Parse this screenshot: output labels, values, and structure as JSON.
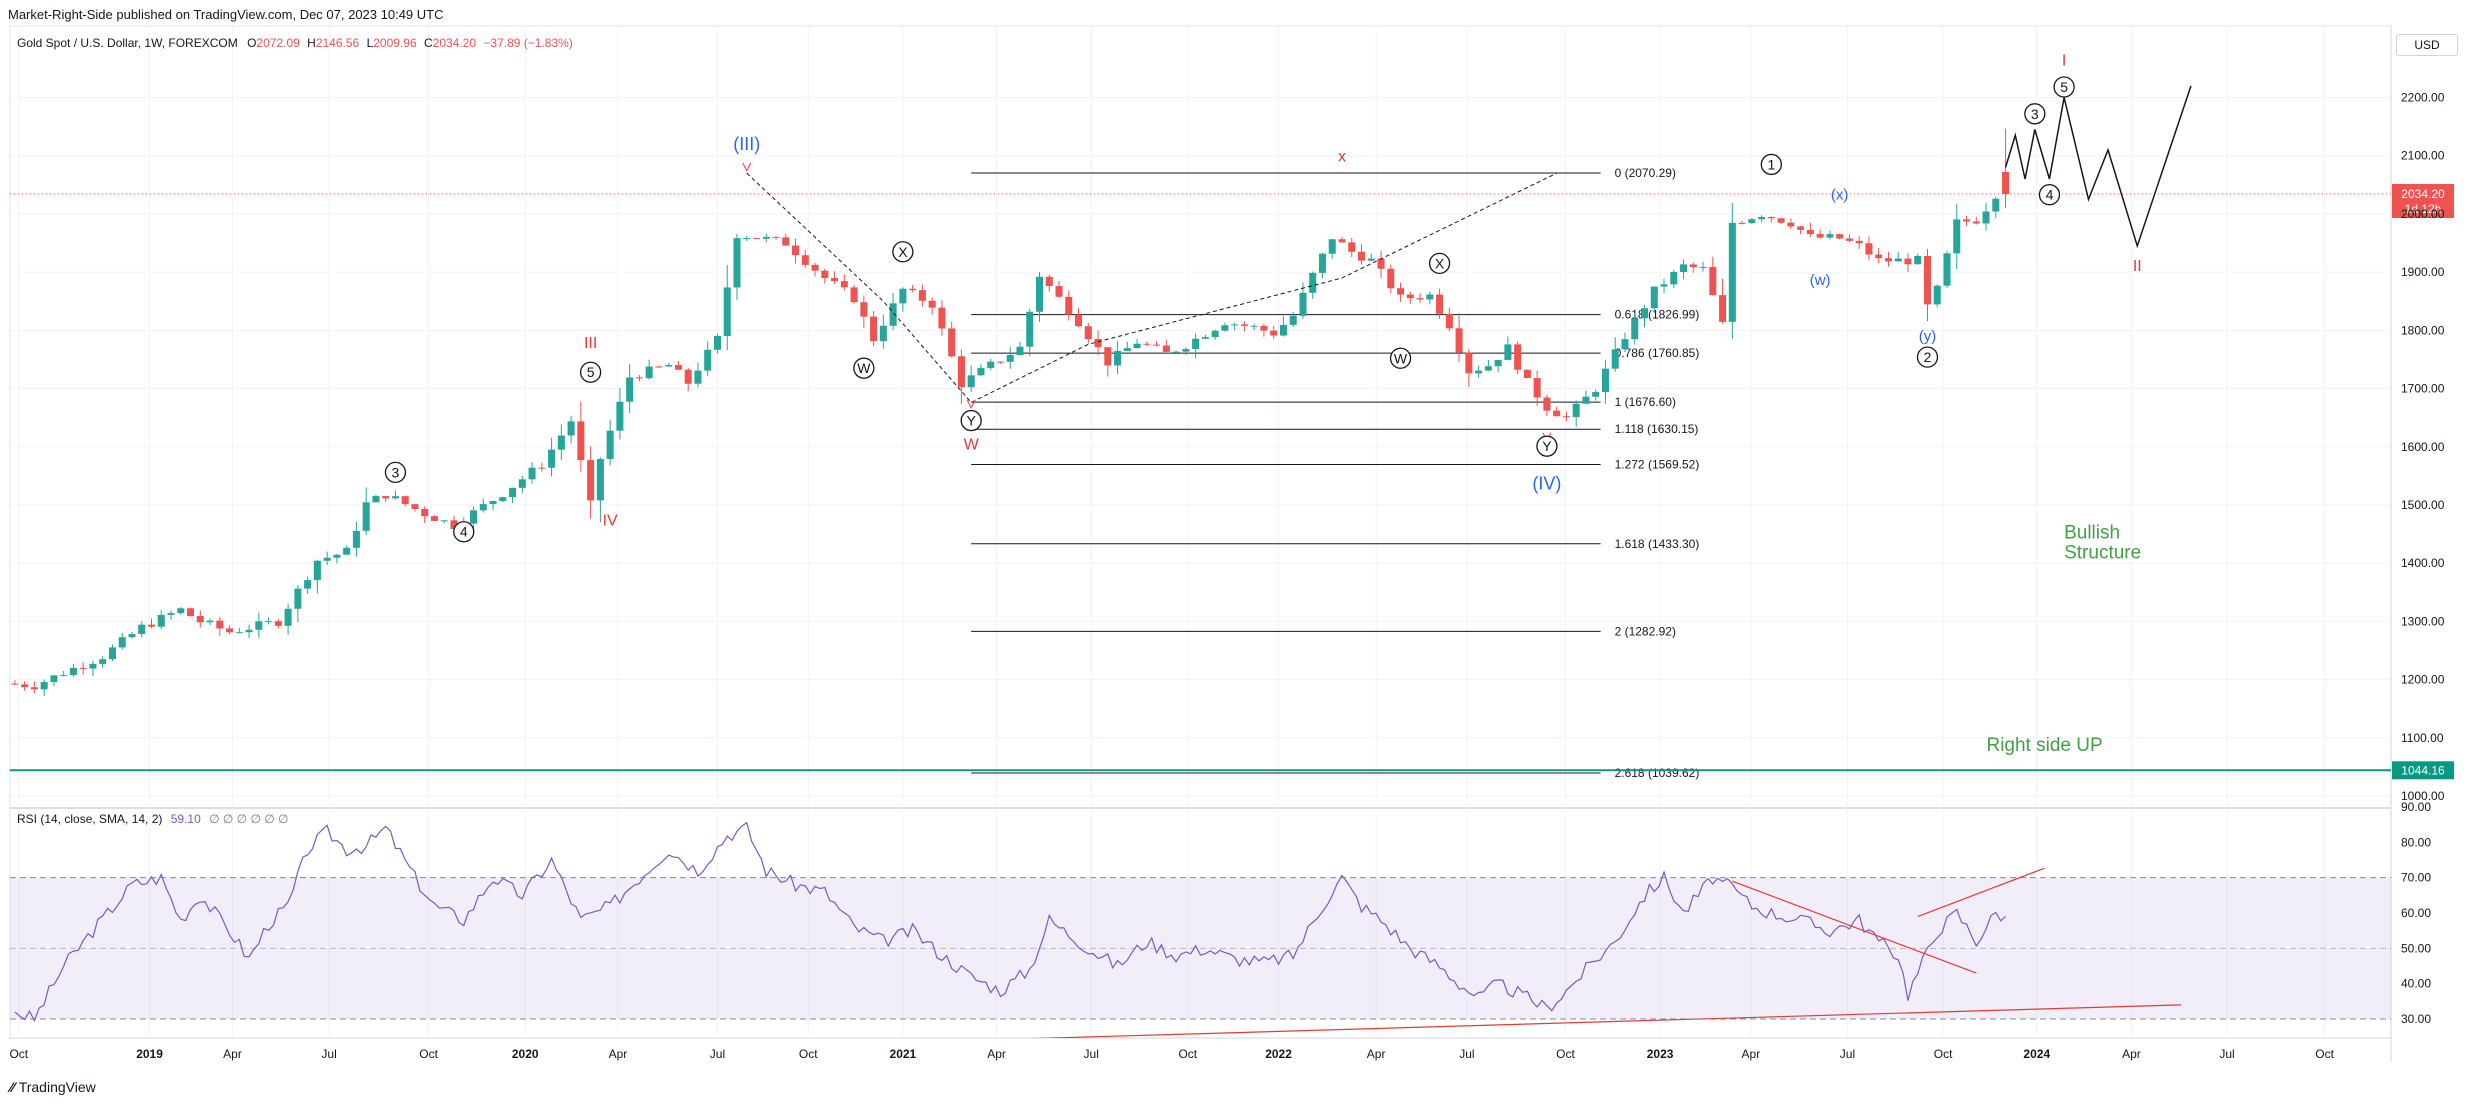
{
  "published": "Market-Right-Side published on TradingView.com, Dec 07, 2023 10:49 UTC",
  "symbol": {
    "name": "Gold Spot / U.S. Dollar, 1W, FOREXCOM",
    "open_label": "O",
    "open": "2072.09",
    "high_label": "H",
    "high": "2146.56",
    "low_label": "L",
    "low": "2009.96",
    "close_label": "C",
    "close": "2034.20",
    "change": "−37.89 (−1.83%)"
  },
  "currency": "USD",
  "price_tag": {
    "value": "2034.20",
    "countdown": "1d 12h"
  },
  "level_tag": "1044.16",
  "rsi_header": "RSI (14, close, SMA, 14, 2)",
  "rsi_value": "59.10",
  "rsi_extra": "∅ ∅ ∅ ∅ ∅ ∅",
  "brand": "TradingView",
  "colors": {
    "up": "#26a69a",
    "down": "#ef5350",
    "rsi": "#7e57c2",
    "wave_black": "#131722",
    "wave_blue": "#2962ff",
    "wave_red": "#e53935",
    "text_green": "#43a047"
  },
  "chart_data": {
    "type": "candlestick",
    "symbol": "XAUUSD",
    "timeframe": "1W",
    "ylim": [
      1000,
      2300
    ],
    "y_ticks": [
      1000,
      1100,
      1200,
      1300,
      1400,
      1500,
      1600,
      1700,
      1800,
      1900,
      2000,
      2100,
      2200
    ],
    "y_tick_labels": [
      "1000.00",
      "1100.00",
      "1200.00",
      "1300.00",
      "1400.00",
      "1500.00",
      "1600.00",
      "1700.00",
      "1800.00",
      "1900.00",
      "2000.00",
      "2100.00",
      "2200.00"
    ],
    "x_ticks": [
      {
        "label": "Oct",
        "t": 0.4,
        "bold": false
      },
      {
        "label": "2019",
        "t": 13.8,
        "bold": true
      },
      {
        "label": "Apr",
        "t": 22.3,
        "bold": false
      },
      {
        "label": "Jul",
        "t": 32.2,
        "bold": false
      },
      {
        "label": "Oct",
        "t": 42.4,
        "bold": false
      },
      {
        "label": "2020",
        "t": 52.3,
        "bold": true
      },
      {
        "label": "Apr",
        "t": 61.8,
        "bold": false
      },
      {
        "label": "Jul",
        "t": 72,
        "bold": false
      },
      {
        "label": "Oct",
        "t": 81.3,
        "bold": false
      },
      {
        "label": "2021",
        "t": 91,
        "bold": true
      },
      {
        "label": "Apr",
        "t": 100.6,
        "bold": false
      },
      {
        "label": "Jul",
        "t": 110.3,
        "bold": false
      },
      {
        "label": "Oct",
        "t": 120.2,
        "bold": false
      },
      {
        "label": "2022",
        "t": 129.5,
        "bold": true
      },
      {
        "label": "Apr",
        "t": 139.5,
        "bold": false
      },
      {
        "label": "Jul",
        "t": 148.8,
        "bold": false
      },
      {
        "label": "Oct",
        "t": 158.9,
        "bold": false
      },
      {
        "label": "2023",
        "t": 168.6,
        "bold": true
      },
      {
        "label": "Apr",
        "t": 177.9,
        "bold": false
      },
      {
        "label": "Jul",
        "t": 187.8,
        "bold": false
      },
      {
        "label": "Oct",
        "t": 197.6,
        "bold": false
      },
      {
        "label": "2024",
        "t": 207.2,
        "bold": true
      },
      {
        "label": "Apr",
        "t": 216.9,
        "bold": false
      },
      {
        "label": "Jul",
        "t": 226.7,
        "bold": false
      },
      {
        "label": "Oct",
        "t": 236.7,
        "bold": false
      }
    ],
    "t_range": [
      -0.5,
      243.5
    ],
    "anchors": [
      [
        0,
        1193
      ],
      [
        3,
        1190
      ],
      [
        6,
        1212
      ],
      [
        10,
        1240
      ],
      [
        14,
        1290
      ],
      [
        18,
        1320
      ],
      [
        20,
        1300
      ],
      [
        23,
        1282
      ],
      [
        28,
        1300
      ],
      [
        32,
        1405
      ],
      [
        35,
        1420
      ],
      [
        37,
        1502
      ],
      [
        39,
        1518
      ],
      [
        43,
        1485
      ],
      [
        46,
        1465
      ],
      [
        51,
        1520
      ],
      [
        55,
        1570
      ],
      [
        58,
        1645
      ],
      [
        60,
        1500
      ],
      [
        61,
        1580
      ],
      [
        64,
        1720
      ],
      [
        68,
        1740
      ],
      [
        70,
        1710
      ],
      [
        73,
        1785
      ],
      [
        75,
        1965
      ],
      [
        77,
        1960
      ],
      [
        80,
        1950
      ],
      [
        84,
        1890
      ],
      [
        87,
        1855
      ],
      [
        89,
        1785
      ],
      [
        92,
        1870
      ],
      [
        95,
        1845
      ],
      [
        98,
        1708
      ],
      [
        101,
        1740
      ],
      [
        104,
        1770
      ],
      [
        106,
        1895
      ],
      [
        108,
        1855
      ],
      [
        110,
        1815
      ],
      [
        113,
        1745
      ],
      [
        116,
        1780
      ],
      [
        119,
        1760
      ],
      [
        121,
        1775
      ],
      [
        125,
        1815
      ],
      [
        128,
        1805
      ],
      [
        130,
        1795
      ],
      [
        132,
        1825
      ],
      [
        134,
        1895
      ],
      [
        136,
        1960
      ],
      [
        138,
        1935
      ],
      [
        140,
        1920
      ],
      [
        143,
        1855
      ],
      [
        146,
        1860
      ],
      [
        148,
        1810
      ],
      [
        150,
        1730
      ],
      [
        152,
        1740
      ],
      [
        154,
        1770
      ],
      [
        156,
        1710
      ],
      [
        158,
        1668
      ],
      [
        160,
        1650
      ],
      [
        163,
        1700
      ],
      [
        166,
        1790
      ],
      [
        169,
        1868
      ],
      [
        172,
        1910
      ],
      [
        174,
        1905
      ],
      [
        176,
        1810
      ],
      [
        177,
        1985
      ],
      [
        180,
        2000
      ],
      [
        183,
        1985
      ],
      [
        185,
        1960
      ],
      [
        188,
        1958
      ],
      [
        190,
        1945
      ],
      [
        192,
        1920
      ],
      [
        194,
        1920
      ],
      [
        196,
        1920
      ],
      [
        197,
        1840
      ],
      [
        198,
        1870
      ],
      [
        200,
        1985
      ],
      [
        202,
        1990
      ],
      [
        203,
        2010
      ],
      [
        204,
        2034
      ]
    ],
    "final_candle": {
      "open": 2072.09,
      "high": 2146.56,
      "low": 2009.96,
      "close": 2034.2
    },
    "fib_levels": [
      {
        "label": "0 (2070.29)",
        "price": 2070.29
      },
      {
        "label": "0.618 (1826.99)",
        "price": 1826.99
      },
      {
        "label": "0.786 (1760.85)",
        "price": 1760.85
      },
      {
        "label": "1 (1676.60)",
        "price": 1676.6
      },
      {
        "label": "1.118 (1630.15)",
        "price": 1630.15
      },
      {
        "label": "1.272 (1569.52)",
        "price": 1569.52
      },
      {
        "label": "1.618 (1433.30)",
        "price": 1433.3
      },
      {
        "label": "2 (1282.92)",
        "price": 1282.92
      },
      {
        "label": "2.618 (1039.62)",
        "price": 1039.62
      }
    ],
    "fib_t_range": [
      98,
      162.5
    ],
    "horizontal_line": 1044.16,
    "current_price": 2034.2,
    "wave_labels": [
      {
        "text": "3",
        "circled": true,
        "color": "black",
        "t": 39,
        "p": 1556
      },
      {
        "text": "4",
        "circled": true,
        "color": "black",
        "t": 46,
        "p": 1454
      },
      {
        "text": "5",
        "circled": true,
        "color": "black",
        "t": 59,
        "p": 1728
      },
      {
        "text": "III",
        "circled": false,
        "color": "red",
        "t": 59,
        "p": 1780
      },
      {
        "text": "IV",
        "circled": false,
        "color": "red",
        "t": 61,
        "p": 1475
      },
      {
        "text": "(III)",
        "circled": false,
        "color": "blue",
        "t": 75,
        "p": 2120
      },
      {
        "text": "X",
        "circled": true,
        "color": "black",
        "t": 91,
        "p": 1935
      },
      {
        "text": "W",
        "circled": true,
        "color": "black",
        "t": 87,
        "p": 1735
      },
      {
        "text": "Y",
        "circled": true,
        "color": "black",
        "t": 98,
        "p": 1645
      },
      {
        "text": "W",
        "circled": false,
        "color": "red",
        "t": 98,
        "p": 1606
      },
      {
        "text": "x",
        "circled": false,
        "color": "red",
        "t": 136,
        "p": 2100
      },
      {
        "text": "X",
        "circled": true,
        "color": "black",
        "t": 146,
        "p": 1915
      },
      {
        "text": "W",
        "circled": true,
        "color": "black",
        "t": 142,
        "p": 1752
      },
      {
        "text": "Y",
        "circled": true,
        "color": "black",
        "t": 157,
        "p": 1601
      },
      {
        "text": "(IV)",
        "circled": false,
        "color": "blue",
        "t": 157,
        "p": 1537
      },
      {
        "text": "1",
        "circled": true,
        "color": "black",
        "t": 180,
        "p": 2085
      },
      {
        "text": "(x)",
        "circled": false,
        "color": "blue",
        "t": 187,
        "p": 2035
      },
      {
        "text": "(w)",
        "circled": false,
        "color": "blue",
        "t": 185,
        "p": 1888
      },
      {
        "text": "(y)",
        "circled": false,
        "color": "blue",
        "t": 196,
        "p": 1792
      },
      {
        "text": "2",
        "circled": true,
        "color": "black",
        "t": 196,
        "p": 1754
      },
      {
        "text": "3",
        "circled": true,
        "color": "black",
        "t": 207,
        "p": 2172
      },
      {
        "text": "4",
        "circled": true,
        "color": "black",
        "t": 208.5,
        "p": 2033
      },
      {
        "text": "5",
        "circled": true,
        "color": "black",
        "t": 210,
        "p": 2218
      },
      {
        "text": "I",
        "circled": false,
        "color": "red",
        "t": 210,
        "p": 2265
      },
      {
        "text": "II",
        "circled": false,
        "color": "red",
        "t": 217.5,
        "p": 1912
      }
    ],
    "wave_arrows": [
      [
        75,
        2074
      ],
      [
        98,
        1667
      ],
      [
        157,
        1610
      ]
    ],
    "projection_path": [
      [
        204,
        2080
      ],
      [
        205,
        2135
      ],
      [
        206,
        2060
      ],
      [
        207,
        2145
      ],
      [
        208.5,
        2060
      ],
      [
        210,
        2200
      ],
      [
        212.5,
        2025
      ],
      [
        214.5,
        2110
      ],
      [
        217.5,
        1945
      ],
      [
        223,
        2220
      ]
    ],
    "dashed_lines": [
      [
        [
          75,
          2070
        ],
        [
          89,
          1850
        ],
        [
          98,
          1676
        ],
        [
          110,
          1776
        ],
        [
          136,
          1890
        ],
        [
          158,
          2070
        ]
      ]
    ],
    "annotations": [
      {
        "text": "Bullish",
        "t": 210,
        "p": 1442,
        "color": "green"
      },
      {
        "text": "Structure",
        "t": 210,
        "p": 1408,
        "color": "green"
      },
      {
        "text": "Right side UP",
        "t": 208,
        "p": 1077,
        "color": "green"
      }
    ],
    "rsi": {
      "ylim": [
        25,
        90
      ],
      "y_ticks": [
        30,
        40,
        50,
        60,
        70,
        80,
        90
      ],
      "y_tick_labels": [
        "30.00",
        "40.00",
        "50.00",
        "60.00",
        "70.00",
        "80.00",
        "90.00"
      ],
      "overbought": 70,
      "middle": 50,
      "oversold": 30,
      "anchors": [
        [
          0,
          32
        ],
        [
          2,
          30
        ],
        [
          5,
          45
        ],
        [
          8,
          55
        ],
        [
          12,
          68
        ],
        [
          15,
          70
        ],
        [
          17,
          58
        ],
        [
          19,
          65
        ],
        [
          22,
          55
        ],
        [
          24,
          47
        ],
        [
          26,
          57
        ],
        [
          28,
          62
        ],
        [
          30,
          78
        ],
        [
          32,
          83
        ],
        [
          34,
          78
        ],
        [
          36,
          79
        ],
        [
          38,
          84
        ],
        [
          41,
          70
        ],
        [
          43,
          62
        ],
        [
          46,
          58
        ],
        [
          49,
          70
        ],
        [
          52,
          65
        ],
        [
          55,
          75
        ],
        [
          58,
          58
        ],
        [
          61,
          62
        ],
        [
          64,
          70
        ],
        [
          67,
          78
        ],
        [
          70,
          72
        ],
        [
          73,
          82
        ],
        [
          75,
          84
        ],
        [
          77,
          72
        ],
        [
          80,
          68
        ],
        [
          83,
          66
        ],
        [
          86,
          56
        ],
        [
          89,
          52
        ],
        [
          92,
          55
        ],
        [
          95,
          48
        ],
        [
          98,
          42
        ],
        [
          101,
          38
        ],
        [
          104,
          44
        ],
        [
          106,
          58
        ],
        [
          108,
          54
        ],
        [
          110,
          50
        ],
        [
          113,
          45
        ],
        [
          116,
          52
        ],
        [
          119,
          48
        ],
        [
          122,
          50
        ],
        [
          125,
          47
        ],
        [
          128,
          46
        ],
        [
          131,
          48
        ],
        [
          134,
          62
        ],
        [
          136,
          70
        ],
        [
          138,
          62
        ],
        [
          140,
          58
        ],
        [
          143,
          50
        ],
        [
          146,
          45
        ],
        [
          148,
          40
        ],
        [
          150,
          36
        ],
        [
          152,
          40
        ],
        [
          155,
          36
        ],
        [
          157,
          33
        ],
        [
          159,
          38
        ],
        [
          161,
          44
        ],
        [
          164,
          52
        ],
        [
          167,
          65
        ],
        [
          169,
          70
        ],
        [
          171,
          60
        ],
        [
          174,
          70
        ],
        [
          176,
          67
        ],
        [
          178,
          62
        ],
        [
          180,
          60
        ],
        [
          183,
          58
        ],
        [
          186,
          55
        ],
        [
          189,
          58
        ],
        [
          191,
          52
        ],
        [
          193,
          48
        ],
        [
          194,
          37
        ],
        [
          195,
          43
        ],
        [
          197,
          55
        ],
        [
          199,
          60
        ],
        [
          201,
          52
        ],
        [
          203,
          60
        ],
        [
          204,
          59
        ]
      ],
      "trendlines": [
        [
          [
            176,
            69
          ],
          [
            201,
            43
          ]
        ],
        [
          [
            195,
            59
          ],
          [
            208,
            72.7
          ]
        ],
        [
          [
            0,
            16
          ],
          [
            222,
            34
          ]
        ]
      ],
      "value": 59.1
    }
  }
}
